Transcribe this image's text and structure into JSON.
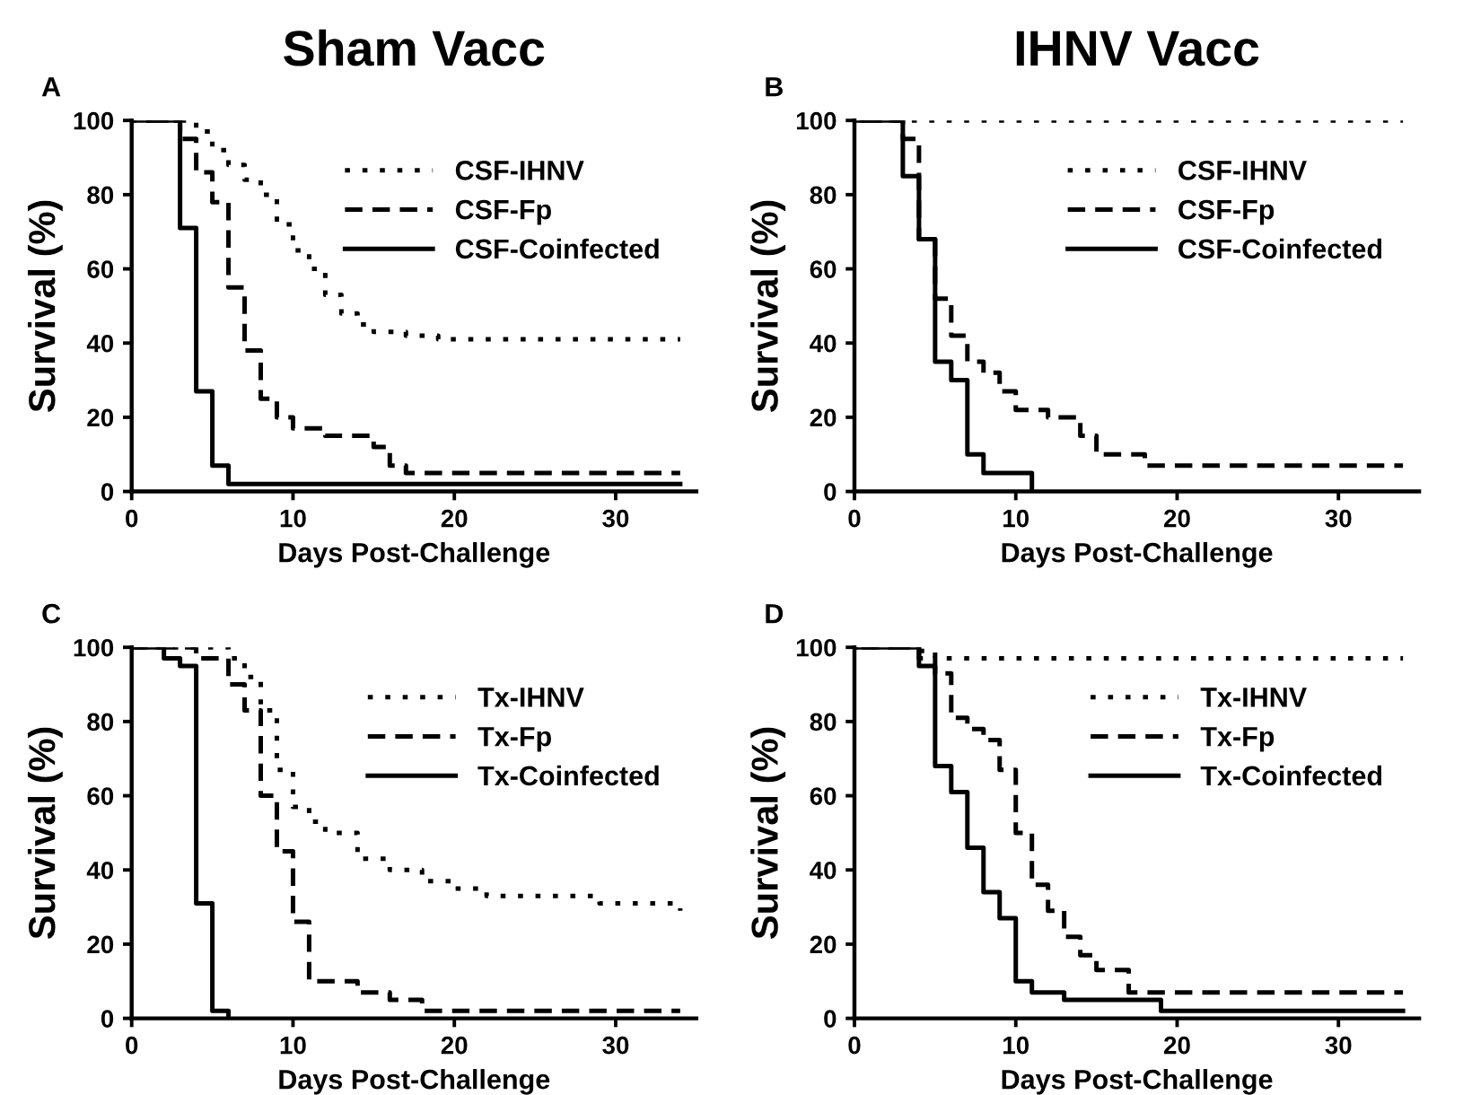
{
  "chart_data": [
    {
      "type": "step",
      "title": "Sham Vacc",
      "annotations": [
        "A"
      ],
      "xlabel": "Days Post-Challenge",
      "ylabel": "Survival (%)",
      "xlim": [
        0,
        35
      ],
      "ylim": [
        0,
        100
      ],
      "xticks": [
        0,
        10,
        20,
        30
      ],
      "yticks": [
        0,
        20,
        40,
        60,
        80,
        100
      ],
      "grid": false,
      "legend": "top right",
      "series": [
        {
          "name": "CSF-IHNV",
          "color": "#000000",
          "line_style": "dotted",
          "x": [
            0,
            4,
            5,
            6,
            7,
            8,
            9,
            10,
            11,
            12,
            13,
            14,
            15,
            17,
            19,
            34
          ],
          "values": [
            100,
            97,
            92,
            88,
            84,
            80,
            72,
            65,
            60,
            53,
            48,
            45,
            43,
            42,
            41,
            41
          ]
        },
        {
          "name": "CSF-Fp",
          "color": "#000000",
          "line_style": "dashed",
          "x": [
            0,
            3,
            4,
            5,
            6,
            7,
            8,
            9,
            10,
            12,
            15,
            16,
            17,
            34
          ],
          "values": [
            100,
            95,
            86,
            78,
            55,
            38,
            25,
            20,
            17,
            15,
            12,
            7,
            5,
            5
          ]
        },
        {
          "name": "CSF-Coinfected",
          "color": "#000000",
          "line_style": "solid",
          "x": [
            0,
            3,
            4,
            5,
            6,
            34
          ],
          "values": [
            100,
            71,
            27,
            7,
            2,
            2
          ]
        }
      ]
    },
    {
      "type": "step",
      "title": "IHNV Vacc",
      "annotations": [
        "B"
      ],
      "xlabel": "Days Post-Challenge",
      "ylabel": "Survival (%)",
      "xlim": [
        0,
        35
      ],
      "ylim": [
        0,
        100
      ],
      "xticks": [
        0,
        10,
        20,
        30
      ],
      "yticks": [
        0,
        20,
        40,
        60,
        80,
        100
      ],
      "grid": false,
      "legend": "top right",
      "series": [
        {
          "name": "CSF-IHNV",
          "color": "#000000",
          "line_style": "dotted",
          "x": [
            0,
            34
          ],
          "values": [
            100,
            100
          ]
        },
        {
          "name": "CSF-Fp",
          "color": "#000000",
          "line_style": "dashed",
          "x": [
            0,
            3,
            4,
            5,
            6,
            7,
            8,
            9,
            10,
            12,
            14,
            15,
            18,
            34
          ],
          "values": [
            100,
            95,
            68,
            52,
            42,
            35,
            32,
            27,
            22,
            20,
            15,
            10,
            7,
            7
          ]
        },
        {
          "name": "CSF-Coinfected",
          "color": "#000000",
          "line_style": "solid",
          "x": [
            0,
            3,
            4,
            5,
            6,
            7,
            8,
            11
          ],
          "values": [
            100,
            85,
            68,
            35,
            30,
            10,
            5,
            0
          ]
        }
      ]
    },
    {
      "type": "step",
      "annotations": [
        "C"
      ],
      "xlabel": "Days Post-Challenge",
      "ylabel": "Survival (%)",
      "xlim": [
        0,
        35
      ],
      "ylim": [
        0,
        100
      ],
      "xticks": [
        0,
        10,
        20,
        30
      ],
      "yticks": [
        0,
        20,
        40,
        60,
        80,
        100
      ],
      "grid": false,
      "legend": "top right",
      "series": [
        {
          "name": "Tx-IHNV",
          "color": "#000000",
          "line_style": "dotted",
          "x": [
            0,
            6,
            7,
            8,
            9,
            10,
            11,
            12,
            14,
            16,
            18,
            20,
            22,
            29,
            34
          ],
          "values": [
            100,
            97,
            92,
            83,
            67,
            57,
            53,
            50,
            43,
            40,
            37,
            35,
            33,
            31,
            29
          ]
        },
        {
          "name": "Tx-Fp",
          "color": "#000000",
          "line_style": "dashed",
          "x": [
            0,
            4,
            6,
            7,
            8,
            9,
            10,
            11,
            14,
            16,
            18,
            34
          ],
          "values": [
            100,
            97,
            90,
            83,
            60,
            45,
            26,
            10,
            7,
            5,
            2,
            2
          ]
        },
        {
          "name": "Tx-Coinfected",
          "color": "#000000",
          "line_style": "solid",
          "x": [
            0,
            2,
            3,
            4,
            5,
            6
          ],
          "values": [
            100,
            97,
            95,
            31,
            2,
            0
          ]
        }
      ]
    },
    {
      "type": "step",
      "annotations": [
        "D"
      ],
      "xlabel": "Days Post-Challenge",
      "ylabel": "Survival (%)",
      "xlim": [
        0,
        35
      ],
      "ylim": [
        0,
        100
      ],
      "xticks": [
        0,
        10,
        20,
        30
      ],
      "yticks": [
        0,
        20,
        40,
        60,
        80,
        100
      ],
      "grid": false,
      "legend": "top right",
      "series": [
        {
          "name": "Tx-IHNV",
          "color": "#000000",
          "line_style": "dotted",
          "x": [
            0,
            4,
            5,
            34
          ],
          "values": [
            100,
            99,
            97,
            97
          ]
        },
        {
          "name": "Tx-Fp",
          "color": "#000000",
          "line_style": "dashed",
          "x": [
            0,
            4,
            5,
            6,
            7,
            8,
            9,
            10,
            11,
            12,
            13,
            14,
            15,
            17,
            34
          ],
          "values": [
            100,
            97,
            93,
            81,
            78,
            75,
            67,
            50,
            36,
            29,
            22,
            17,
            13,
            7,
            7
          ]
        },
        {
          "name": "Tx-Coinfected",
          "color": "#000000",
          "line_style": "solid",
          "x": [
            0,
            4,
            5,
            6,
            7,
            8,
            9,
            10,
            11,
            13,
            19,
            34
          ],
          "values": [
            100,
            95,
            68,
            61,
            46,
            34,
            27,
            10,
            7,
            5,
            2,
            2
          ]
        }
      ]
    }
  ]
}
